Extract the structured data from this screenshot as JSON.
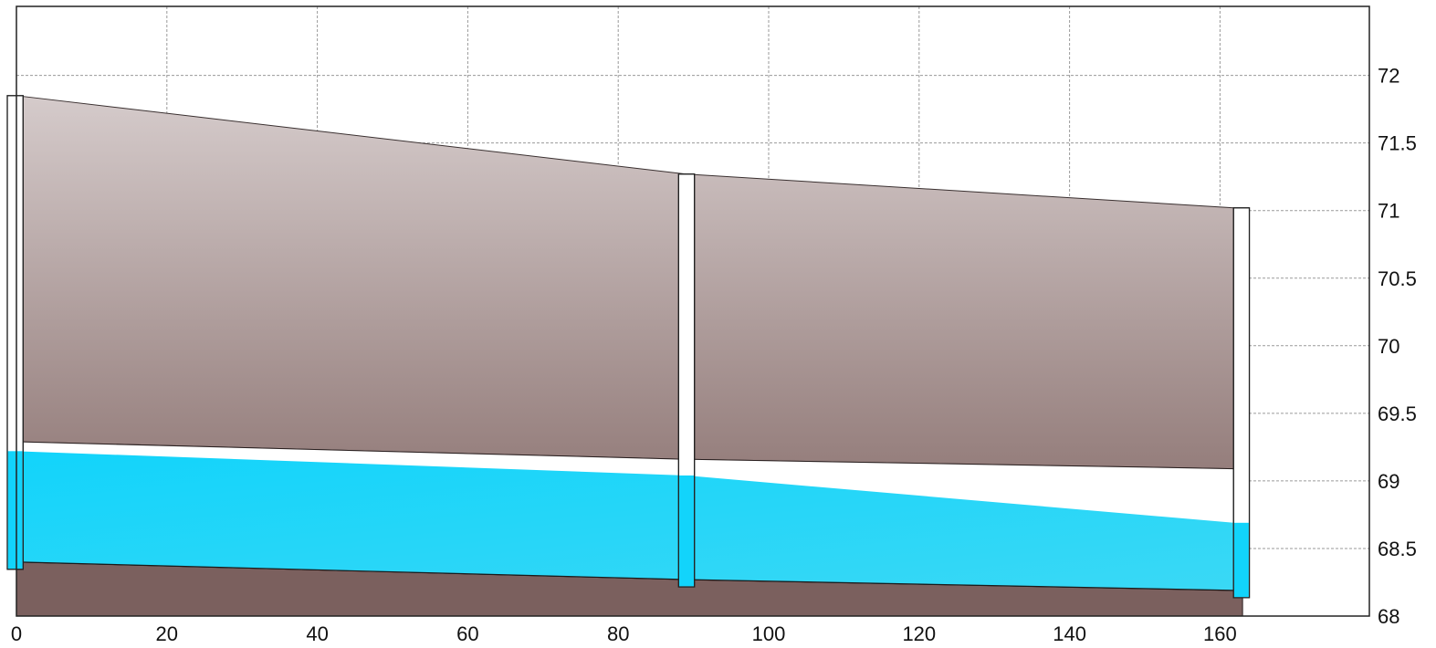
{
  "chart_data": {
    "type": "area",
    "xlim": [
      0,
      181
    ],
    "ylim": [
      68,
      72.5
    ],
    "x_ticks": [
      "0",
      "20",
      "40",
      "60",
      "80",
      "100",
      "120",
      "140",
      "160"
    ],
    "y_ticks": [
      "68",
      "68.5",
      "69",
      "69.5",
      "70",
      "70.5",
      "71",
      "71.5",
      "72"
    ],
    "y_axis_side": "right",
    "grid": true,
    "manholes": [
      {
        "x": 0,
        "rim": 71.85,
        "invert": 68.4
      },
      {
        "x": 89,
        "rim": 71.27,
        "invert": 68.27
      },
      {
        "x": 161.8,
        "rim": 71.02,
        "invert": 68.19
      }
    ],
    "pipe_bottom": {
      "x": [
        0,
        89,
        161.8
      ],
      "y": [
        68.4,
        68.27,
        68.19
      ]
    },
    "pipe_top": {
      "x": [
        0,
        89,
        161.8
      ],
      "y": [
        69.29,
        69.16,
        69.09
      ]
    },
    "water_surface": {
      "x": [
        0,
        89,
        161.8
      ],
      "y": [
        69.22,
        69.04,
        68.69
      ]
    },
    "ground_surface": {
      "x": [
        0,
        89,
        161.8
      ],
      "y": [
        71.85,
        71.27,
        71.02
      ]
    },
    "colors": {
      "soil_top": "#d5cbcb",
      "soil_bottom": "#957e7c",
      "bedrock": "#7b605e",
      "water_light": "#3ad8f5",
      "water_dark": "#12d4fb",
      "manhole": "#ffffff"
    }
  }
}
